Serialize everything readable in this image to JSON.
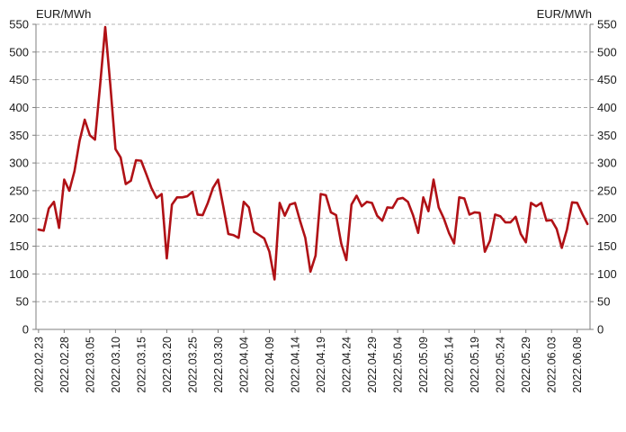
{
  "chart_data": {
    "type": "line",
    "unit_left": "EUR/MWh",
    "unit_right": "EUR/MWh",
    "ylim": [
      0,
      550
    ],
    "y_ticks": [
      0,
      50,
      100,
      150,
      200,
      250,
      300,
      350,
      400,
      450,
      500,
      550
    ],
    "grid": true,
    "line_color": "#b01116",
    "x_tick_labels": [
      "2022.02.23",
      "2022.02.28",
      "2022.03.05",
      "2022.03.10",
      "2022.03.15",
      "2022.03.20",
      "2022.03.25",
      "2022.03.30",
      "2022.04.04",
      "2022.04.09",
      "2022.04.14",
      "2022.04.19",
      "2022.04.24",
      "2022.04.29",
      "2022.05.04",
      "2022.05.09",
      "2022.05.14",
      "2022.05.19",
      "2022.05.24",
      "2022.05.29",
      "2022.06.03",
      "2022.06.08"
    ],
    "x_tick_every": 5,
    "series": [
      {
        "values": [
          180,
          178,
          218,
          230,
          183,
          270,
          250,
          285,
          340,
          378,
          350,
          342,
          440,
          545,
          440,
          325,
          310,
          262,
          268,
          305,
          304,
          280,
          255,
          237,
          244,
          128,
          225,
          238,
          238,
          240,
          248,
          207,
          206,
          228,
          255,
          270,
          222,
          172,
          170,
          165,
          230,
          220,
          176,
          170,
          164,
          140,
          90,
          228,
          205,
          225,
          228,
          195,
          165,
          104,
          133,
          244,
          242,
          211,
          206,
          155,
          125,
          225,
          241,
          222,
          230,
          228,
          205,
          196,
          220,
          219,
          235,
          237,
          230,
          206,
          174,
          238,
          213,
          270,
          220,
          200,
          174,
          155,
          238,
          236,
          207,
          211,
          210,
          140,
          160,
          207,
          204,
          193,
          193,
          203,
          172,
          157,
          228,
          222,
          228,
          196,
          197,
          181,
          147,
          180,
          229,
          228,
          208,
          190
        ]
      }
    ]
  }
}
